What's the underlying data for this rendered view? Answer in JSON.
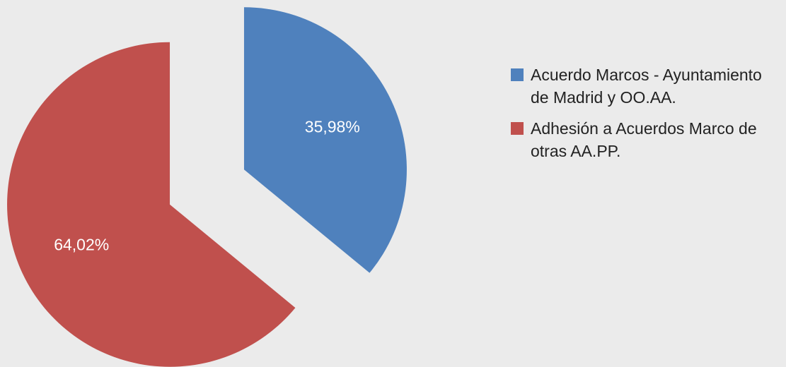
{
  "chart_data": {
    "type": "pie",
    "categories": [
      "Acuerdo Marcos - Ayuntamiento de Madrid y OO.AA.",
      "Adhesión a Acuerdos Marco de otras AA.PP."
    ],
    "values": [
      35.98,
      64.02
    ],
    "value_labels": [
      "35,98%",
      "64,02%"
    ],
    "colors": [
      "#4f81bd",
      "#c0504d"
    ],
    "exploded": true,
    "legend": "right"
  }
}
